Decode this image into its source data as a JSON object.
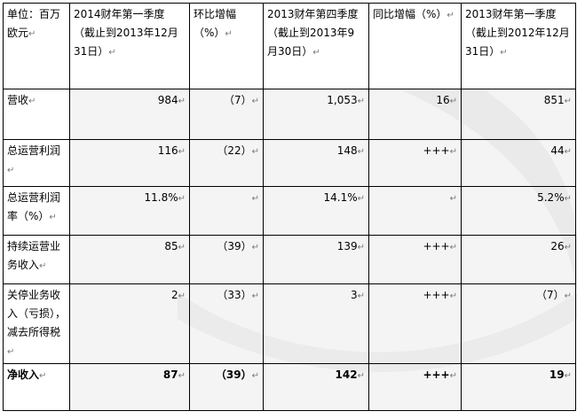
{
  "table": {
    "headers": [
      "单位：百万欧元",
      "2014财年第一季度（截止到2013年12月31日）",
      "环比增幅（%）",
      "2013财年第四季度（截止到2013年9月30日）",
      "同比增幅（%）",
      "2013财年第一季度（截止到2012年12月31日）"
    ],
    "rows": [
      {
        "label": "营收",
        "values": [
          "984",
          "（7）",
          "1,053",
          "16",
          "851"
        ]
      },
      {
        "label": "总运营利润",
        "values": [
          "116",
          "（22）",
          "148",
          "+++",
          "44"
        ]
      },
      {
        "label": "总运营利润率（%）",
        "values": [
          "11.8%",
          "",
          "14.1%",
          "",
          "5.2%"
        ]
      },
      {
        "label": "持续运营业务收入",
        "values": [
          "85",
          "（39）",
          "139",
          "+++",
          "26"
        ]
      },
      {
        "label": "关停业务收入（亏损），减去所得税",
        "values": [
          "2",
          "（33）",
          "3",
          "+++",
          "（7）"
        ]
      },
      {
        "label": "净收入",
        "values": [
          "87",
          "（39）",
          "142",
          "+++",
          "19"
        ]
      }
    ]
  },
  "colors": {
    "border": "#000000",
    "watermark": "#e6e6e6"
  }
}
